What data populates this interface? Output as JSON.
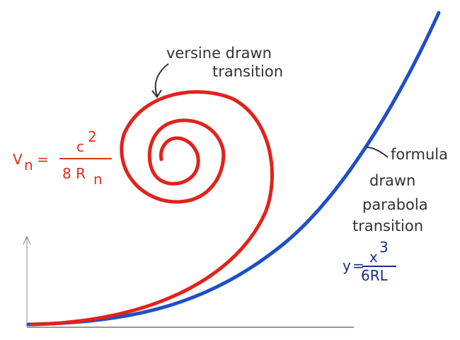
{
  "labels": {
    "versine": [
      "versine drawn",
      "transition"
    ],
    "parabola": [
      "formula",
      "drawn",
      "parabola",
      "transition"
    ]
  },
  "versine_formula": {
    "lhs": "V",
    "lhs_sub": "n",
    "eq": "=",
    "numerator": "c",
    "numerator_sup": "2",
    "denominator": "8 R",
    "denominator_sub": "n"
  },
  "parabola_formula": {
    "lhs": "y",
    "eq": "=",
    "numerator": "x",
    "numerator_sup": "3",
    "denominator": "6RL"
  }
}
